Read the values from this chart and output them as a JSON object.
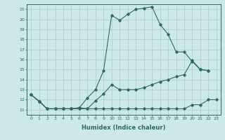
{
  "xlabel": "Humidex (Indice chaleur)",
  "bg_color": "#cce8e8",
  "grid_color": "#aacccc",
  "line_color": "#2d6b5e",
  "xlim": [
    -0.5,
    23.5
  ],
  "ylim": [
    10.5,
    21.5
  ],
  "xticks": [
    0,
    1,
    2,
    3,
    4,
    5,
    6,
    7,
    8,
    9,
    10,
    11,
    12,
    13,
    14,
    15,
    16,
    17,
    18,
    19,
    20,
    21,
    22,
    23
  ],
  "yticks": [
    11,
    12,
    13,
    14,
    15,
    16,
    17,
    18,
    19,
    20,
    21
  ],
  "line1_x": [
    0,
    1,
    2,
    3,
    4,
    5,
    6,
    7,
    8,
    9,
    10,
    11,
    12,
    13,
    14,
    15,
    16,
    17,
    18,
    19,
    20,
    21,
    22,
    23
  ],
  "line1_y": [
    12.5,
    11.85,
    11.1,
    11.1,
    11.1,
    11.1,
    11.1,
    11.1,
    11.1,
    11.1,
    11.1,
    11.1,
    11.1,
    11.1,
    11.1,
    11.1,
    11.1,
    11.1,
    11.1,
    11.1,
    11.5,
    11.5,
    12.0,
    12.0
  ],
  "line2_x": [
    0,
    1,
    2,
    3,
    4,
    5,
    6,
    7,
    8,
    9,
    10,
    11,
    12,
    13,
    14,
    15,
    16,
    17,
    18,
    19,
    20,
    21,
    22
  ],
  "line2_y": [
    12.5,
    11.85,
    11.1,
    11.1,
    11.1,
    11.1,
    11.2,
    12.2,
    13.0,
    14.9,
    20.4,
    19.9,
    20.5,
    21.0,
    21.1,
    21.25,
    19.5,
    18.5,
    16.75,
    16.75,
    15.8,
    15.0,
    14.9
  ],
  "line3_x": [
    0,
    1,
    2,
    3,
    4,
    5,
    6,
    7,
    8,
    9,
    10,
    11,
    12,
    13,
    14,
    15,
    16,
    17,
    18,
    19,
    20,
    21,
    22
  ],
  "line3_y": [
    12.5,
    11.85,
    11.1,
    11.1,
    11.1,
    11.1,
    11.2,
    11.1,
    11.9,
    12.6,
    13.5,
    13.0,
    13.0,
    13.0,
    13.2,
    13.5,
    13.8,
    14.0,
    14.3,
    14.5,
    15.9,
    15.0,
    14.9
  ]
}
